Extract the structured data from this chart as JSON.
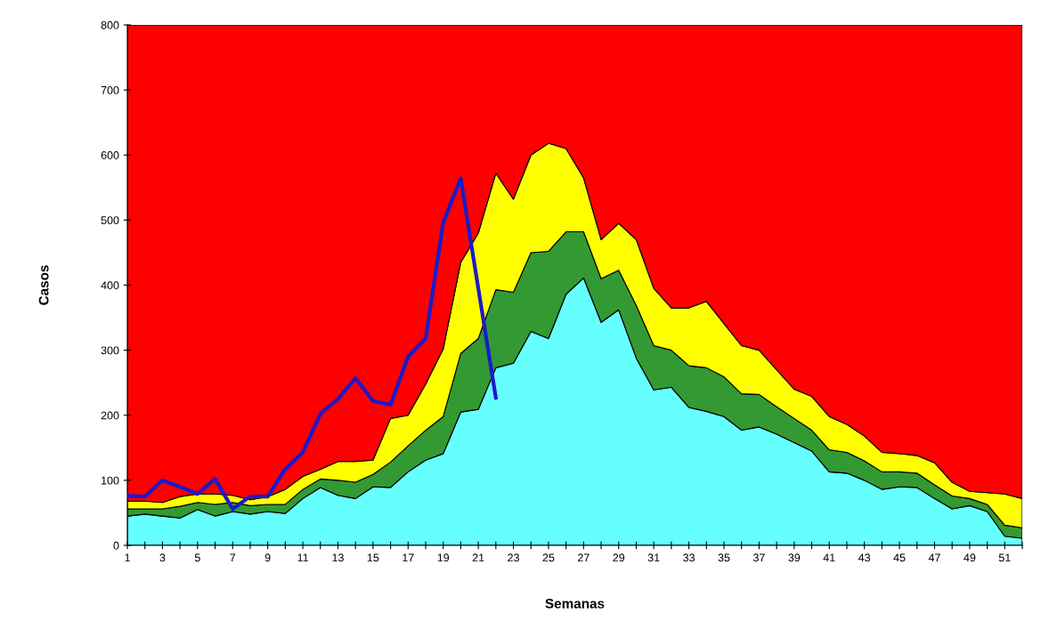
{
  "chart_data": {
    "type": "area",
    "stacked": true,
    "xlabel": "Semanas",
    "ylabel": "Casos",
    "x": [
      1,
      2,
      3,
      4,
      5,
      6,
      7,
      8,
      9,
      10,
      11,
      12,
      13,
      14,
      15,
      16,
      17,
      18,
      19,
      20,
      21,
      22,
      23,
      24,
      25,
      26,
      27,
      28,
      29,
      30,
      31,
      32,
      33,
      34,
      35,
      36,
      37,
      38,
      39,
      40,
      41,
      42,
      43,
      44,
      45,
      46,
      47,
      48,
      49,
      50,
      51,
      52
    ],
    "xlim": [
      1,
      52
    ],
    "xticks": [
      1,
      {
        "value": 2,
        "label": null
      },
      3,
      {
        "value": 4,
        "label": null
      },
      5,
      {
        "value": 6,
        "label": null
      },
      7,
      {
        "value": 8,
        "label": null
      },
      9,
      {
        "value": 10,
        "label": null
      },
      11,
      {
        "value": 12,
        "label": null
      },
      13,
      {
        "value": 14,
        "label": null
      },
      15,
      {
        "value": 16,
        "label": null
      },
      17,
      {
        "value": 18,
        "label": null
      },
      19,
      {
        "value": 20,
        "label": null
      },
      21,
      {
        "value": 22,
        "label": null
      },
      23,
      {
        "value": 24,
        "label": null
      },
      25,
      {
        "value": 26,
        "label": null
      },
      27,
      {
        "value": 28,
        "label": null
      },
      29,
      {
        "value": 30,
        "label": null
      },
      31,
      {
        "value": 32,
        "label": null
      },
      33,
      {
        "value": 34,
        "label": null
      },
      35,
      {
        "value": 36,
        "label": null
      },
      37,
      {
        "value": 38,
        "label": null
      },
      39,
      {
        "value": 40,
        "label": null
      },
      41,
      {
        "value": 42,
        "label": null
      },
      43,
      {
        "value": 44,
        "label": null
      },
      45,
      {
        "value": 46,
        "label": null
      },
      47,
      {
        "value": 48,
        "label": null
      },
      49,
      {
        "value": 50,
        "label": null
      },
      51,
      {
        "value": 52,
        "label": null
      }
    ],
    "ylim": [
      0,
      800
    ],
    "yticks": [
      0,
      100,
      200,
      300,
      400,
      500,
      600,
      700,
      800
    ],
    "grid": false,
    "series": [
      {
        "color": "#66ffff",
        "values": [
          45,
          48,
          45,
          42,
          55,
          45,
          52,
          48,
          52,
          49,
          72,
          89,
          77,
          72,
          90,
          89,
          113,
          131,
          141,
          205,
          209,
          273,
          280,
          329,
          318,
          386,
          411,
          343,
          362,
          288,
          239,
          243,
          212,
          206,
          198,
          177,
          182,
          171,
          158,
          145,
          113,
          111,
          100,
          86,
          90,
          89,
          72,
          56,
          61,
          52,
          14,
          11
        ]
      },
      {
        "color": "#339933",
        "values": [
          11,
          8,
          11,
          18,
          11,
          18,
          14,
          13,
          11,
          14,
          14,
          13,
          23,
          25,
          19,
          39,
          40,
          46,
          57,
          90,
          109,
          120,
          109,
          121,
          134,
          96,
          71,
          67,
          61,
          81,
          68,
          57,
          64,
          67,
          61,
          56,
          50,
          42,
          37,
          32,
          34,
          32,
          30,
          27,
          23,
          22,
          21,
          20,
          11,
          11,
          17,
          16
        ]
      },
      {
        "color": "#ffff00",
        "values": [
          12,
          12,
          10,
          15,
          13,
          16,
          11,
          9,
          12,
          23,
          20,
          15,
          29,
          32,
          22,
          67,
          47,
          71,
          104,
          140,
          162,
          179,
          143,
          150,
          166,
          128,
          83,
          60,
          72,
          101,
          88,
          65,
          89,
          102,
          82,
          74,
          68,
          57,
          45,
          52,
          51,
          43,
          38,
          30,
          28,
          27,
          34,
          21,
          11,
          18,
          48,
          45
        ]
      },
      {
        "color": "#ff0000",
        "values": [
          732,
          732,
          734,
          725,
          721,
          721,
          723,
          730,
          725,
          714,
          694,
          683,
          671,
          671,
          669,
          605,
          600,
          552,
          498,
          365,
          320,
          228,
          268,
          200,
          182,
          190,
          235,
          330,
          305,
          330,
          405,
          435,
          435,
          425,
          459,
          493,
          500,
          530,
          560,
          571,
          602,
          614,
          632,
          657,
          659,
          662,
          673,
          703,
          717,
          719,
          721,
          728
        ]
      },
      {
        "type": "line",
        "color": "#1a1acc",
        "x": [
          1,
          2,
          3,
          4,
          5,
          6,
          7,
          8,
          9,
          10,
          11,
          12,
          13,
          14,
          15,
          16,
          17,
          18,
          19,
          20,
          21,
          22
        ],
        "values": [
          76,
          75,
          100,
          90,
          79,
          102,
          56,
          75,
          75,
          117,
          143,
          202,
          225,
          257,
          222,
          216,
          290,
          318,
          496,
          564,
          395,
          227
        ]
      }
    ]
  }
}
